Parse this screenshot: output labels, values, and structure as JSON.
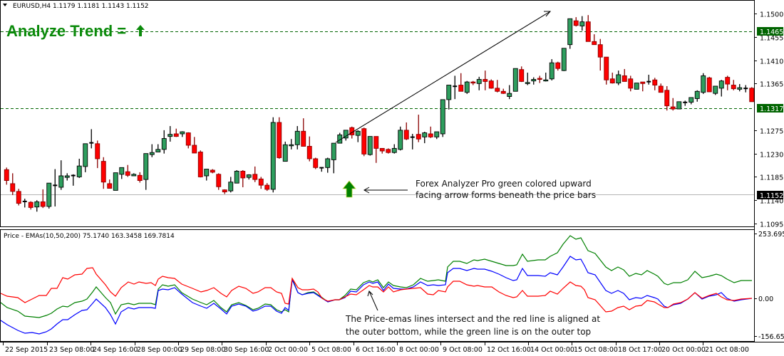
{
  "header": {
    "symbol_line": "EURUSD,H4  1.1179 1.1181 1.1143 1.1152",
    "title": "Analyze Trend =",
    "title_arrow": "up-arrow"
  },
  "indicator": {
    "label": "Price - EMAs(10,50,200) 75.1740 163.3458 169.7814",
    "axis_labels": [
      "253.6957",
      "0.00",
      "-156.653"
    ]
  },
  "annotations": {
    "arrow_note_line1": "Forex Analyzer Pro green colored upward",
    "arrow_note_line2": "facing arrow forms beneath the price bars",
    "ema_note_line1": "The Price-emas lines intersect and the red line is aligned at",
    "ema_note_line2": "the outer bottom, while the green line is on the outer top"
  },
  "colors": {
    "bull": "#2e9e5e",
    "bear": "#ff0000",
    "bear_wick": "#8b0000",
    "title": "#0a8a0a",
    "hline": "#006400",
    "ema_fast": "#ff0000",
    "ema_mid": "#0000ff",
    "ema_slow": "#008000"
  },
  "chart_data": [
    {
      "type": "candlestick",
      "title": "EURUSD,H4",
      "ylim": [
        1.108,
        1.1525
      ],
      "y_ticks": [
        "1.1500",
        "1.1455",
        "1.1410",
        "1.1365",
        "1.1275",
        "1.1230",
        "1.1185",
        "1.1140",
        "1.1095"
      ],
      "price_tags": [
        {
          "value": "1.1465",
          "style": "green-dashed"
        },
        {
          "value": "1.1317",
          "style": "green-dashed"
        },
        {
          "value": "1.1152",
          "style": "gray-solid-current"
        }
      ],
      "x_labels": [
        "22 Sep 2015",
        "23 Sep 08:00",
        "24 Sep 16:00",
        "28 Sep 00:00",
        "29 Sep 08:00",
        "30 Sep 16:00",
        "2 Oct 00:00",
        "5 Oct 08:00",
        "6 Oct 16:00",
        "8 Oct 00:00",
        "9 Oct 08:00",
        "12 Oct 16:00",
        "14 Oct 00:00",
        "15 Oct 08:00",
        "18 Oct 17:00",
        "20 Oct 00:00",
        "21 Oct 08:00"
      ],
      "candles": [
        [
          1.1199,
          1.1203,
          1.117,
          1.1178
        ],
        [
          1.1172,
          1.1192,
          1.115,
          1.1157
        ],
        [
          1.1157,
          1.1162,
          1.113,
          1.1134
        ],
        [
          1.1138,
          1.1143,
          1.1126,
          1.1138
        ],
        [
          1.1136,
          1.1138,
          1.1122,
          1.1126
        ],
        [
          1.1127,
          1.114,
          1.1118,
          1.1137
        ],
        [
          1.1137,
          1.1161,
          1.1125,
          1.1128
        ],
        [
          1.1128,
          1.1171,
          1.1124,
          1.1173
        ],
        [
          1.1169,
          1.12,
          1.1128,
          1.1169
        ],
        [
          1.1165,
          1.1217,
          1.116,
          1.1187
        ],
        [
          1.1184,
          1.1192,
          1.1178,
          1.1187
        ],
        [
          1.1188,
          1.119,
          1.1168,
          1.1187
        ],
        [
          1.1185,
          1.122,
          1.1183,
          1.1206
        ],
        [
          1.1205,
          1.1244,
          1.1194,
          1.1249
        ],
        [
          1.1251,
          1.1277,
          1.124,
          1.1251
        ],
        [
          1.1249,
          1.1255,
          1.1202,
          1.122
        ],
        [
          1.1215,
          1.1223,
          1.1162,
          1.1175
        ],
        [
          1.1172,
          1.118,
          1.1166,
          1.1163
        ],
        [
          1.1159,
          1.1189,
          1.116,
          1.1193
        ],
        [
          1.119,
          1.12,
          1.1181,
          1.1203
        ],
        [
          1.1195,
          1.1208,
          1.1185,
          1.1188
        ],
        [
          1.1187,
          1.1192,
          1.1187,
          1.119
        ],
        [
          1.1188,
          1.1194,
          1.1174,
          1.1178
        ],
        [
          1.118,
          1.122,
          1.116,
          1.123
        ],
        [
          1.1228,
          1.1248,
          1.1223,
          1.1232
        ],
        [
          1.1233,
          1.1248,
          1.1233,
          1.1238
        ],
        [
          1.1238,
          1.1275,
          1.123,
          1.1259
        ],
        [
          1.1263,
          1.1283,
          1.1253,
          1.1267
        ],
        [
          1.1268,
          1.1278,
          1.1262,
          1.1263
        ],
        [
          1.1268,
          1.1273,
          1.1262,
          1.1272
        ],
        [
          1.127,
          1.1271,
          1.124,
          1.1246
        ],
        [
          1.1246,
          1.1262,
          1.1239,
          1.1231
        ],
        [
          1.1233,
          1.1236,
          1.1184,
          1.1185
        ],
        [
          1.1187,
          1.12,
          1.1178,
          1.12
        ],
        [
          1.1198,
          1.12,
          1.1192,
          1.1194
        ],
        [
          1.119,
          1.1192,
          1.116,
          1.1166
        ],
        [
          1.116,
          1.1161,
          1.1152,
          1.1156
        ],
        [
          1.1158,
          1.1185,
          1.1155,
          1.1175
        ],
        [
          1.1173,
          1.1198,
          1.1175,
          1.1196
        ],
        [
          1.1196,
          1.1198,
          1.1165,
          1.1183
        ],
        [
          1.1184,
          1.119,
          1.118,
          1.1189
        ],
        [
          1.119,
          1.1205,
          1.1175,
          1.118
        ],
        [
          1.1181,
          1.1185,
          1.1162,
          1.1169
        ],
        [
          1.1169,
          1.1173,
          1.1158,
          1.1161
        ],
        [
          1.1161,
          1.13,
          1.1155,
          1.129
        ],
        [
          1.129,
          1.13,
          1.122,
          1.1222
        ],
        [
          1.1215,
          1.1253,
          1.1218,
          1.1247
        ],
        [
          1.1245,
          1.1258,
          1.1238,
          1.1247
        ],
        [
          1.1247,
          1.1283,
          1.1238,
          1.1273
        ],
        [
          1.1273,
          1.1298,
          1.1245,
          1.1244
        ],
        [
          1.1244,
          1.1263,
          1.1215,
          1.122
        ],
        [
          1.122,
          1.1222,
          1.12,
          1.1203
        ],
        [
          1.1203,
          1.1203,
          1.1195,
          1.1203
        ],
        [
          1.1203,
          1.1222,
          1.1193,
          1.122
        ],
        [
          1.1218,
          1.1243,
          1.1192,
          1.125
        ],
        [
          1.125,
          1.127,
          1.125,
          1.1266
        ],
        [
          1.126,
          1.127,
          1.1255,
          1.1275
        ],
        [
          1.128,
          1.1282,
          1.1259,
          1.1266
        ],
        [
          1.1265,
          1.1275,
          1.1252,
          1.1273
        ],
        [
          1.1278,
          1.128,
          1.1225,
          1.1229
        ],
        [
          1.1228,
          1.1262,
          1.1226,
          1.1263
        ],
        [
          1.1263,
          1.1263,
          1.1212,
          1.124
        ],
        [
          1.124,
          1.124,
          1.123,
          1.1235
        ],
        [
          1.1238,
          1.124,
          1.123,
          1.1232
        ],
        [
          1.1232,
          1.1248,
          1.123,
          1.124
        ],
        [
          1.1238,
          1.1282,
          1.1236,
          1.1275
        ],
        [
          1.1275,
          1.129,
          1.1256,
          1.1258
        ],
        [
          1.1262,
          1.1268,
          1.1238,
          1.1262
        ],
        [
          1.1267,
          1.1305,
          1.1252,
          1.1258
        ],
        [
          1.1262,
          1.1272,
          1.125,
          1.127
        ],
        [
          1.1268,
          1.1282,
          1.126,
          1.1262
        ],
        [
          1.1262,
          1.1268,
          1.1258,
          1.1272
        ],
        [
          1.1268,
          1.1325,
          1.1262,
          1.1334
        ],
        [
          1.1334,
          1.1355,
          1.1315,
          1.1362
        ],
        [
          1.136,
          1.138,
          1.1335,
          1.136
        ],
        [
          1.1362,
          1.1385,
          1.1355,
          1.135
        ],
        [
          1.1348,
          1.137,
          1.1345,
          1.1368
        ],
        [
          1.1368,
          1.137,
          1.1362,
          1.1366
        ],
        [
          1.1365,
          1.1378,
          1.1352,
          1.1373
        ],
        [
          1.1373,
          1.139,
          1.1352,
          1.1369
        ],
        [
          1.137,
          1.1373,
          1.1355,
          1.1356
        ],
        [
          1.1356,
          1.1372,
          1.1348,
          1.135
        ],
        [
          1.135,
          1.1355,
          1.1345,
          1.1346
        ],
        [
          1.134,
          1.1362,
          1.1335,
          1.1346
        ],
        [
          1.135,
          1.1394,
          1.135,
          1.1394
        ],
        [
          1.1392,
          1.1398,
          1.1368,
          1.1369
        ],
        [
          1.1365,
          1.1386,
          1.1362,
          1.1367
        ],
        [
          1.137,
          1.1377,
          1.1363,
          1.1373
        ],
        [
          1.1375,
          1.138,
          1.1366,
          1.1373
        ],
        [
          1.137,
          1.1386,
          1.1369,
          1.1372
        ],
        [
          1.1374,
          1.1412,
          1.1371,
          1.1405
        ],
        [
          1.1405,
          1.1407,
          1.139,
          1.1394
        ],
        [
          1.139,
          1.1433,
          1.1389,
          1.1433
        ],
        [
          1.144,
          1.1488,
          1.1432,
          1.149
        ],
        [
          1.1486,
          1.1493,
          1.1475,
          1.1477
        ],
        [
          1.1476,
          1.1495,
          1.1467,
          1.1484
        ],
        [
          1.1484,
          1.1497,
          1.1446,
          1.1446
        ],
        [
          1.1446,
          1.146,
          1.1441,
          1.144
        ],
        [
          1.144,
          1.1451,
          1.139,
          1.1416
        ],
        [
          1.1416,
          1.1416,
          1.1363,
          1.1372
        ],
        [
          1.1374,
          1.1386,
          1.1365,
          1.1366
        ],
        [
          1.1366,
          1.139,
          1.1362,
          1.1382
        ],
        [
          1.138,
          1.1393,
          1.137,
          1.1369
        ],
        [
          1.1374,
          1.138,
          1.135,
          1.1356
        ],
        [
          1.1354,
          1.1364,
          1.1354,
          1.1366
        ],
        [
          1.1368,
          1.1368,
          1.135,
          1.1365
        ],
        [
          1.1369,
          1.1382,
          1.1363,
          1.1368
        ],
        [
          1.1372,
          1.1376,
          1.1352,
          1.1362
        ],
        [
          1.136,
          1.1365,
          1.135,
          1.1348
        ],
        [
          1.1352,
          1.136,
          1.1313,
          1.1322
        ],
        [
          1.132,
          1.1337,
          1.1313,
          1.1316
        ],
        [
          1.1316,
          1.133,
          1.1316,
          1.133
        ],
        [
          1.1329,
          1.1332,
          1.1322,
          1.1329
        ],
        [
          1.1329,
          1.1338,
          1.1325,
          1.1338
        ],
        [
          1.1336,
          1.1352,
          1.133,
          1.135
        ],
        [
          1.1348,
          1.1385,
          1.1345,
          1.138
        ],
        [
          1.1376,
          1.1378,
          1.135,
          1.1349
        ],
        [
          1.1346,
          1.136,
          1.1343,
          1.136
        ],
        [
          1.1356,
          1.1372,
          1.134,
          1.137
        ],
        [
          1.1377,
          1.138,
          1.1352,
          1.1364
        ],
        [
          1.1362,
          1.1372,
          1.1352,
          1.1355
        ],
        [
          1.1354,
          1.1364,
          1.135,
          1.1357
        ],
        [
          1.1355,
          1.1362,
          1.1348,
          1.1356
        ],
        [
          1.1356,
          1.1358,
          1.1345,
          1.133
        ]
      ],
      "trend_line": {
        "from_price": 1.1275,
        "to_price": 1.15,
        "direction": "up"
      },
      "signal_arrow": {
        "type": "up-arrow",
        "color": "#008000",
        "position": "below bar near 5 Oct 08:00"
      }
    },
    {
      "type": "line",
      "title": "Price - EMAs(10,50,200)",
      "values_shown": [
        75.174,
        163.3458,
        169.7814
      ],
      "ylim": [
        -156.653,
        253.6957
      ],
      "y_ticks": [
        "253.6957",
        "0.00",
        "-156.653"
      ],
      "series": [
        {
          "name": "EMA10 (red)",
          "color": "#ff0000"
        },
        {
          "name": "EMA50 (blue)",
          "color": "#0000ff"
        },
        {
          "name": "EMA200 (green)",
          "color": "#008000"
        }
      ]
    }
  ]
}
